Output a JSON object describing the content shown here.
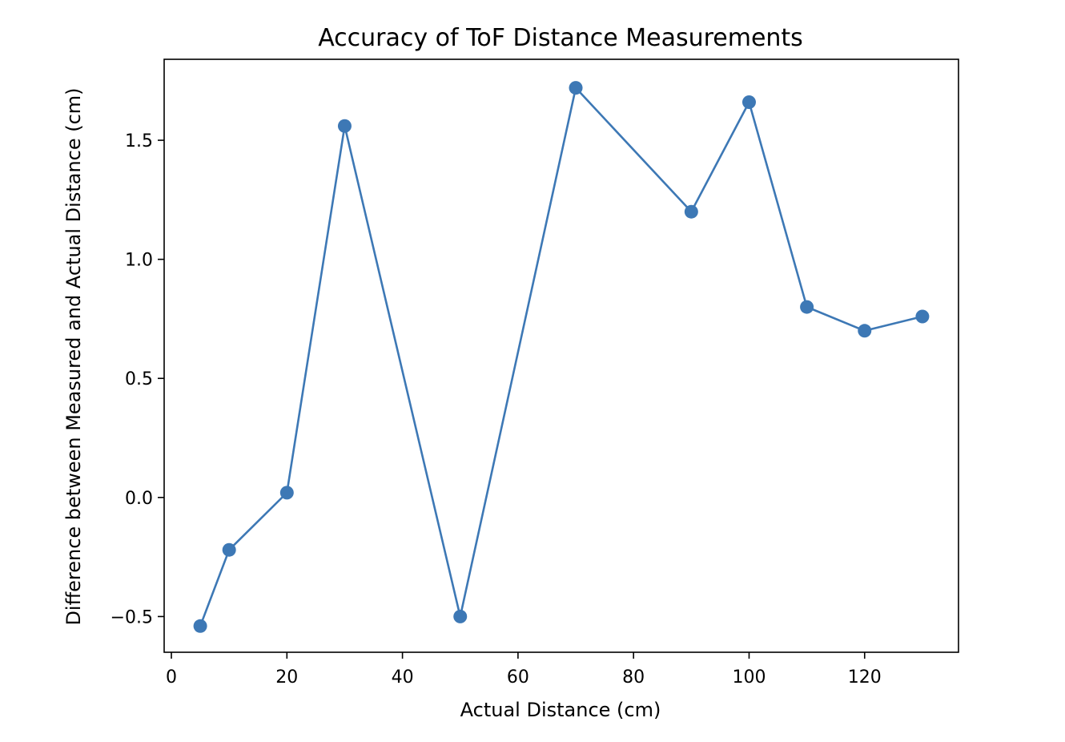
{
  "chart_data": {
    "type": "line",
    "title": "Accuracy of ToF Distance Measurements",
    "xlabel": "Actual Distance (cm)",
    "ylabel": "Difference between Measured and Actual Distance (cm)",
    "x_ticks": [
      0,
      20,
      40,
      60,
      80,
      100,
      120
    ],
    "x_tick_labels": [
      "0",
      "20",
      "40",
      "60",
      "80",
      "100",
      "120"
    ],
    "y_ticks": [
      -0.5,
      0.0,
      0.5,
      1.0,
      1.5
    ],
    "y_tick_labels": [
      "−0.5",
      "0.0",
      "0.5",
      "1.0",
      "1.5"
    ],
    "xlim": [
      -1.25,
      136.25
    ],
    "ylim": [
      -0.65,
      1.84
    ],
    "grid": false,
    "series": [
      {
        "x": [
          5,
          10,
          20,
          30,
          50,
          70,
          90,
          100,
          110,
          120,
          130
        ],
        "values": [
          -0.54,
          -0.22,
          0.02,
          1.56,
          -0.5,
          1.72,
          1.2,
          1.66,
          0.8,
          0.7,
          0.76
        ],
        "color": "#3d78b5",
        "marker": "circle"
      }
    ]
  }
}
